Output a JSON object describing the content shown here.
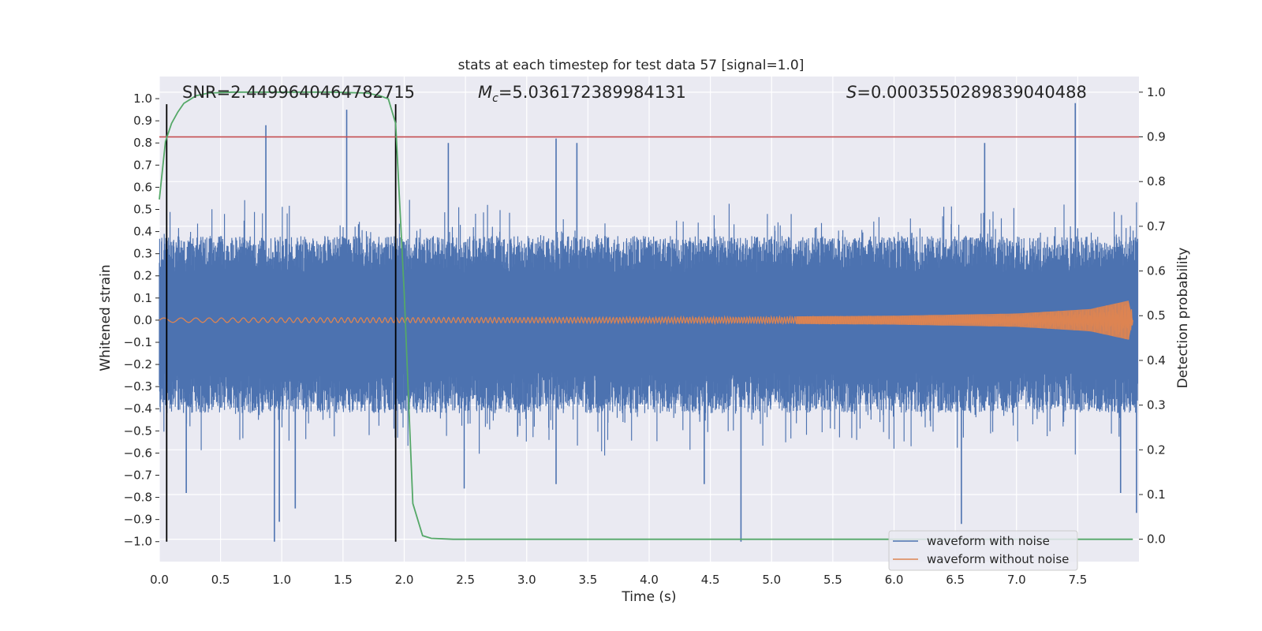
{
  "chart_data": {
    "type": "line",
    "title": "stats at each timestep for test data 57 [signal=1.0]",
    "xlabel": "Time (s)",
    "ylabel": "Whitened strain",
    "ylabel_right": "Detection probability",
    "xlim": [
      0.0,
      8.0
    ],
    "ylim": [
      -1.09,
      1.1
    ],
    "ylim_right": [
      -0.05,
      1.035
    ],
    "x_ticks": [
      "0.0",
      "0.5",
      "1.0",
      "1.5",
      "2.0",
      "2.5",
      "3.0",
      "3.5",
      "4.0",
      "4.5",
      "5.0",
      "5.5",
      "6.0",
      "6.5",
      "7.0",
      "7.5"
    ],
    "y_ticks": [
      "1.0",
      "0.9",
      "0.8",
      "0.7",
      "0.6",
      "0.5",
      "0.4",
      "0.3",
      "0.2",
      "0.1",
      "0.0",
      "−0.1",
      "−0.2",
      "−0.3",
      "−0.4",
      "−0.5",
      "−0.6",
      "−0.7",
      "−0.8",
      "−0.9",
      "−1.0"
    ],
    "y_ticks_right": [
      "1.0",
      "0.9",
      "0.8",
      "0.7",
      "0.6",
      "0.5",
      "0.4",
      "0.3",
      "0.2",
      "0.1",
      "0.0"
    ],
    "annotations": {
      "snr": "SNR=2.4499640464782715",
      "mc_symbol": "M",
      "mc_sub": "c",
      "mc_value": "=5.036172389984131",
      "s_symbol": "S",
      "s_value": "=0.0003550289839040488"
    },
    "series": [
      {
        "name": "waveform with noise",
        "color": "#4c72b0",
        "x_range": [
          0.0,
          7.99
        ],
        "typical_envelope": [
          -0.42,
          0.38
        ],
        "peaks": [
          {
            "x": 0.87,
            "y": 0.88
          },
          {
            "x": 1.53,
            "y": 0.95
          },
          {
            "x": 2.36,
            "y": 0.8
          },
          {
            "x": 3.24,
            "y": 0.82
          },
          {
            "x": 3.41,
            "y": 0.8
          },
          {
            "x": 6.74,
            "y": 0.8
          },
          {
            "x": 7.48,
            "y": 0.98
          },
          {
            "x": 0.94,
            "y": -1.0
          },
          {
            "x": 0.98,
            "y": -0.91
          },
          {
            "x": 1.11,
            "y": -0.85
          },
          {
            "x": 0.22,
            "y": -0.78
          },
          {
            "x": 4.75,
            "y": -1.0
          },
          {
            "x": 6.55,
            "y": -0.92
          },
          {
            "x": 7.85,
            "y": -0.78
          },
          {
            "x": 7.98,
            "y": -0.87
          },
          {
            "x": 2.49,
            "y": -0.76
          },
          {
            "x": 3.24,
            "y": -0.74
          },
          {
            "x": 4.45,
            "y": -0.74
          }
        ]
      },
      {
        "name": "waveform without noise",
        "color": "#dd8452",
        "envelope": [
          [
            0.0,
            0.01
          ],
          [
            4.0,
            0.013
          ],
          [
            6.0,
            0.02
          ],
          [
            7.0,
            0.03
          ],
          [
            7.6,
            0.05
          ],
          [
            7.93,
            0.09
          ],
          [
            7.95,
            0.0
          ]
        ]
      },
      {
        "name": "detection probability",
        "color": "#55a868",
        "axis": "right",
        "x": [
          0.0,
          0.05,
          0.1,
          0.15,
          0.2,
          0.3,
          0.4,
          0.6,
          1.0,
          1.4,
          1.7,
          1.8,
          1.87,
          1.93,
          2.0,
          2.07,
          2.15,
          2.22,
          2.4,
          7.95
        ],
        "y": [
          0.76,
          0.89,
          0.93,
          0.955,
          0.975,
          0.992,
          0.998,
          1.0,
          1.0,
          1.0,
          0.998,
          0.992,
          0.985,
          0.93,
          0.55,
          0.08,
          0.008,
          0.002,
          0.0,
          0.0
        ]
      }
    ],
    "threshold": {
      "axis": "right",
      "value": 0.9,
      "color": "#c44e52"
    },
    "vertical_markers": [
      0.06,
      1.93
    ],
    "legend": {
      "placement": "lower-right",
      "entries": [
        {
          "label": "waveform with noise",
          "color": "#4c72b0"
        },
        {
          "label": "waveform without noise",
          "color": "#dd8452"
        }
      ]
    }
  }
}
